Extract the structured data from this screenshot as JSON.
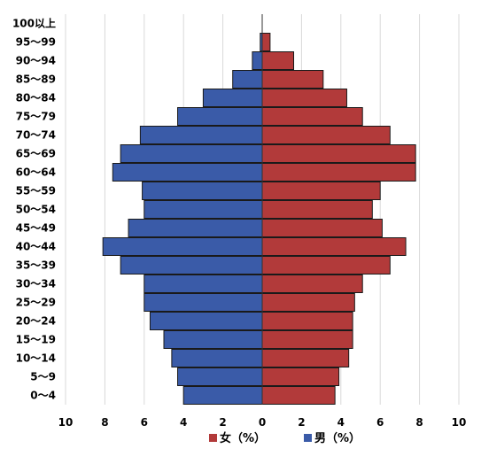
{
  "chart_data": {
    "type": "bar",
    "orientation": "horizontal",
    "layout": "population-pyramid",
    "categories": [
      "100以上",
      "95～99",
      "90～94",
      "85～89",
      "80～84",
      "75～79",
      "70～74",
      "65～69",
      "60～64",
      "55～59",
      "50～54",
      "45～49",
      "40～44",
      "35～39",
      "30～34",
      "25～29",
      "20～24",
      "15～19",
      "10～14",
      "5～9",
      "0～4"
    ],
    "series": [
      {
        "name": "女（%）",
        "side": "right",
        "color": "#b23a3a",
        "values": [
          0.0,
          0.4,
          1.6,
          3.1,
          4.3,
          5.1,
          6.5,
          7.8,
          7.8,
          6.0,
          5.6,
          6.1,
          7.3,
          6.5,
          5.1,
          4.7,
          4.6,
          4.6,
          4.4,
          3.9,
          3.7
        ]
      },
      {
        "name": "男（%）",
        "side": "left",
        "color": "#3a5ba8",
        "values": [
          0.0,
          0.1,
          0.5,
          1.5,
          3.0,
          4.3,
          6.2,
          7.2,
          7.6,
          6.1,
          6.0,
          6.8,
          8.1,
          7.2,
          6.0,
          6.0,
          5.7,
          5.0,
          4.6,
          4.3,
          4.0
        ]
      }
    ],
    "x_ticks": [
      "10",
      "8",
      "6",
      "4",
      "2",
      "0",
      "2",
      "4",
      "6",
      "8",
      "10"
    ],
    "xlim": [
      -10,
      10
    ],
    "grid": true,
    "legend_position": "bottom"
  }
}
